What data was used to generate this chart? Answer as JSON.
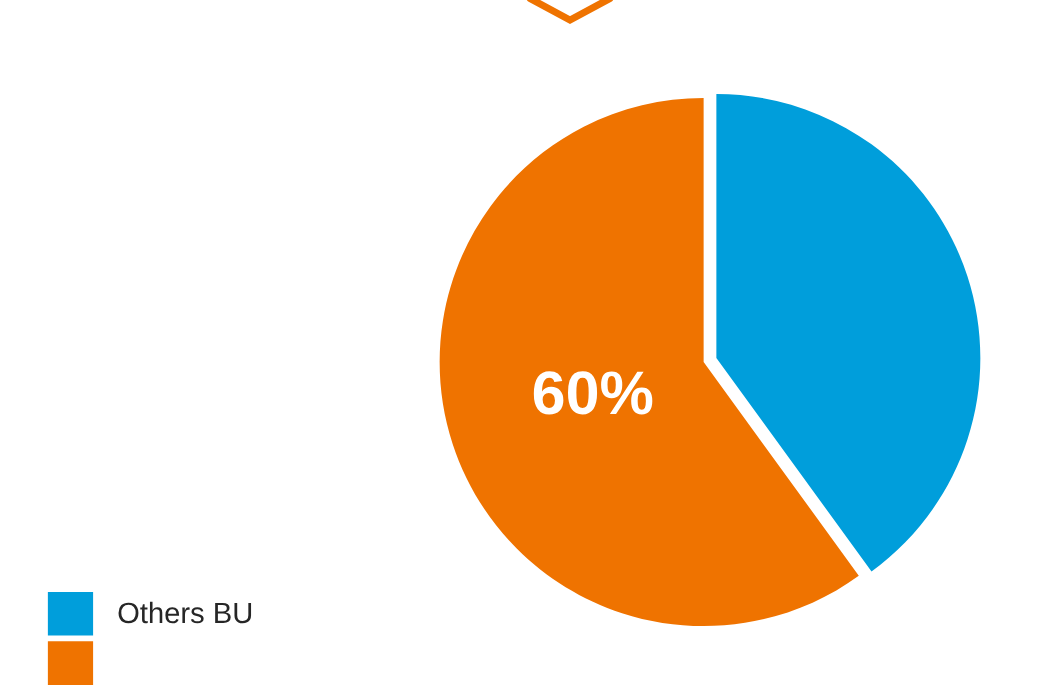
{
  "chart_data": {
    "type": "pie",
    "categories": [
      "Others BU",
      null
    ],
    "values": [
      40,
      60
    ],
    "colors": [
      "#009edb",
      "#ef7300"
    ],
    "value_labels": [
      null,
      "60%"
    ],
    "legend": "bottom left"
  }
}
